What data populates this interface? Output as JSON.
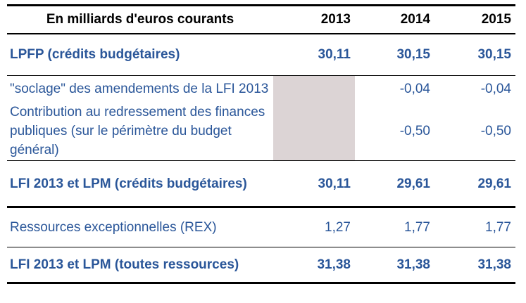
{
  "table": {
    "unit_header": "En milliards d'euros courants",
    "years": [
      "2013",
      "2014",
      "2015"
    ],
    "rows": [
      {
        "label": "LPFP (crédits budgétaires)",
        "style": "bold",
        "values": [
          "30,11",
          "30,15",
          "30,15"
        ]
      },
      {
        "label": "\"soclage\" des amendements de la LFI 2013",
        "style": "regular",
        "values": [
          "",
          "-0,04",
          "-0,04"
        ]
      },
      {
        "label": "Contribution au redressement des finances publiques (sur le périmètre du budget général)",
        "style": "regular",
        "values": [
          "",
          "-0,50",
          "-0,50"
        ]
      },
      {
        "label": "LFI 2013 et LPM (crédits budgétaires)",
        "style": "bold",
        "values": [
          "30,11",
          "29,61",
          "29,61"
        ]
      },
      {
        "label": "Ressources exceptionnelles (REX)",
        "style": "regular",
        "values": [
          "1,27",
          "1,77",
          "1,77"
        ]
      },
      {
        "label": "LFI 2013 et LPM (toutes ressources)",
        "style": "bold",
        "values": [
          "31,38",
          "31,38",
          "31,38"
        ]
      }
    ],
    "colors": {
      "text_blue": "#2A5699",
      "header_text": "#000000",
      "shaded_cell": "#DCD4D5",
      "rule_line": "#000000"
    }
  }
}
